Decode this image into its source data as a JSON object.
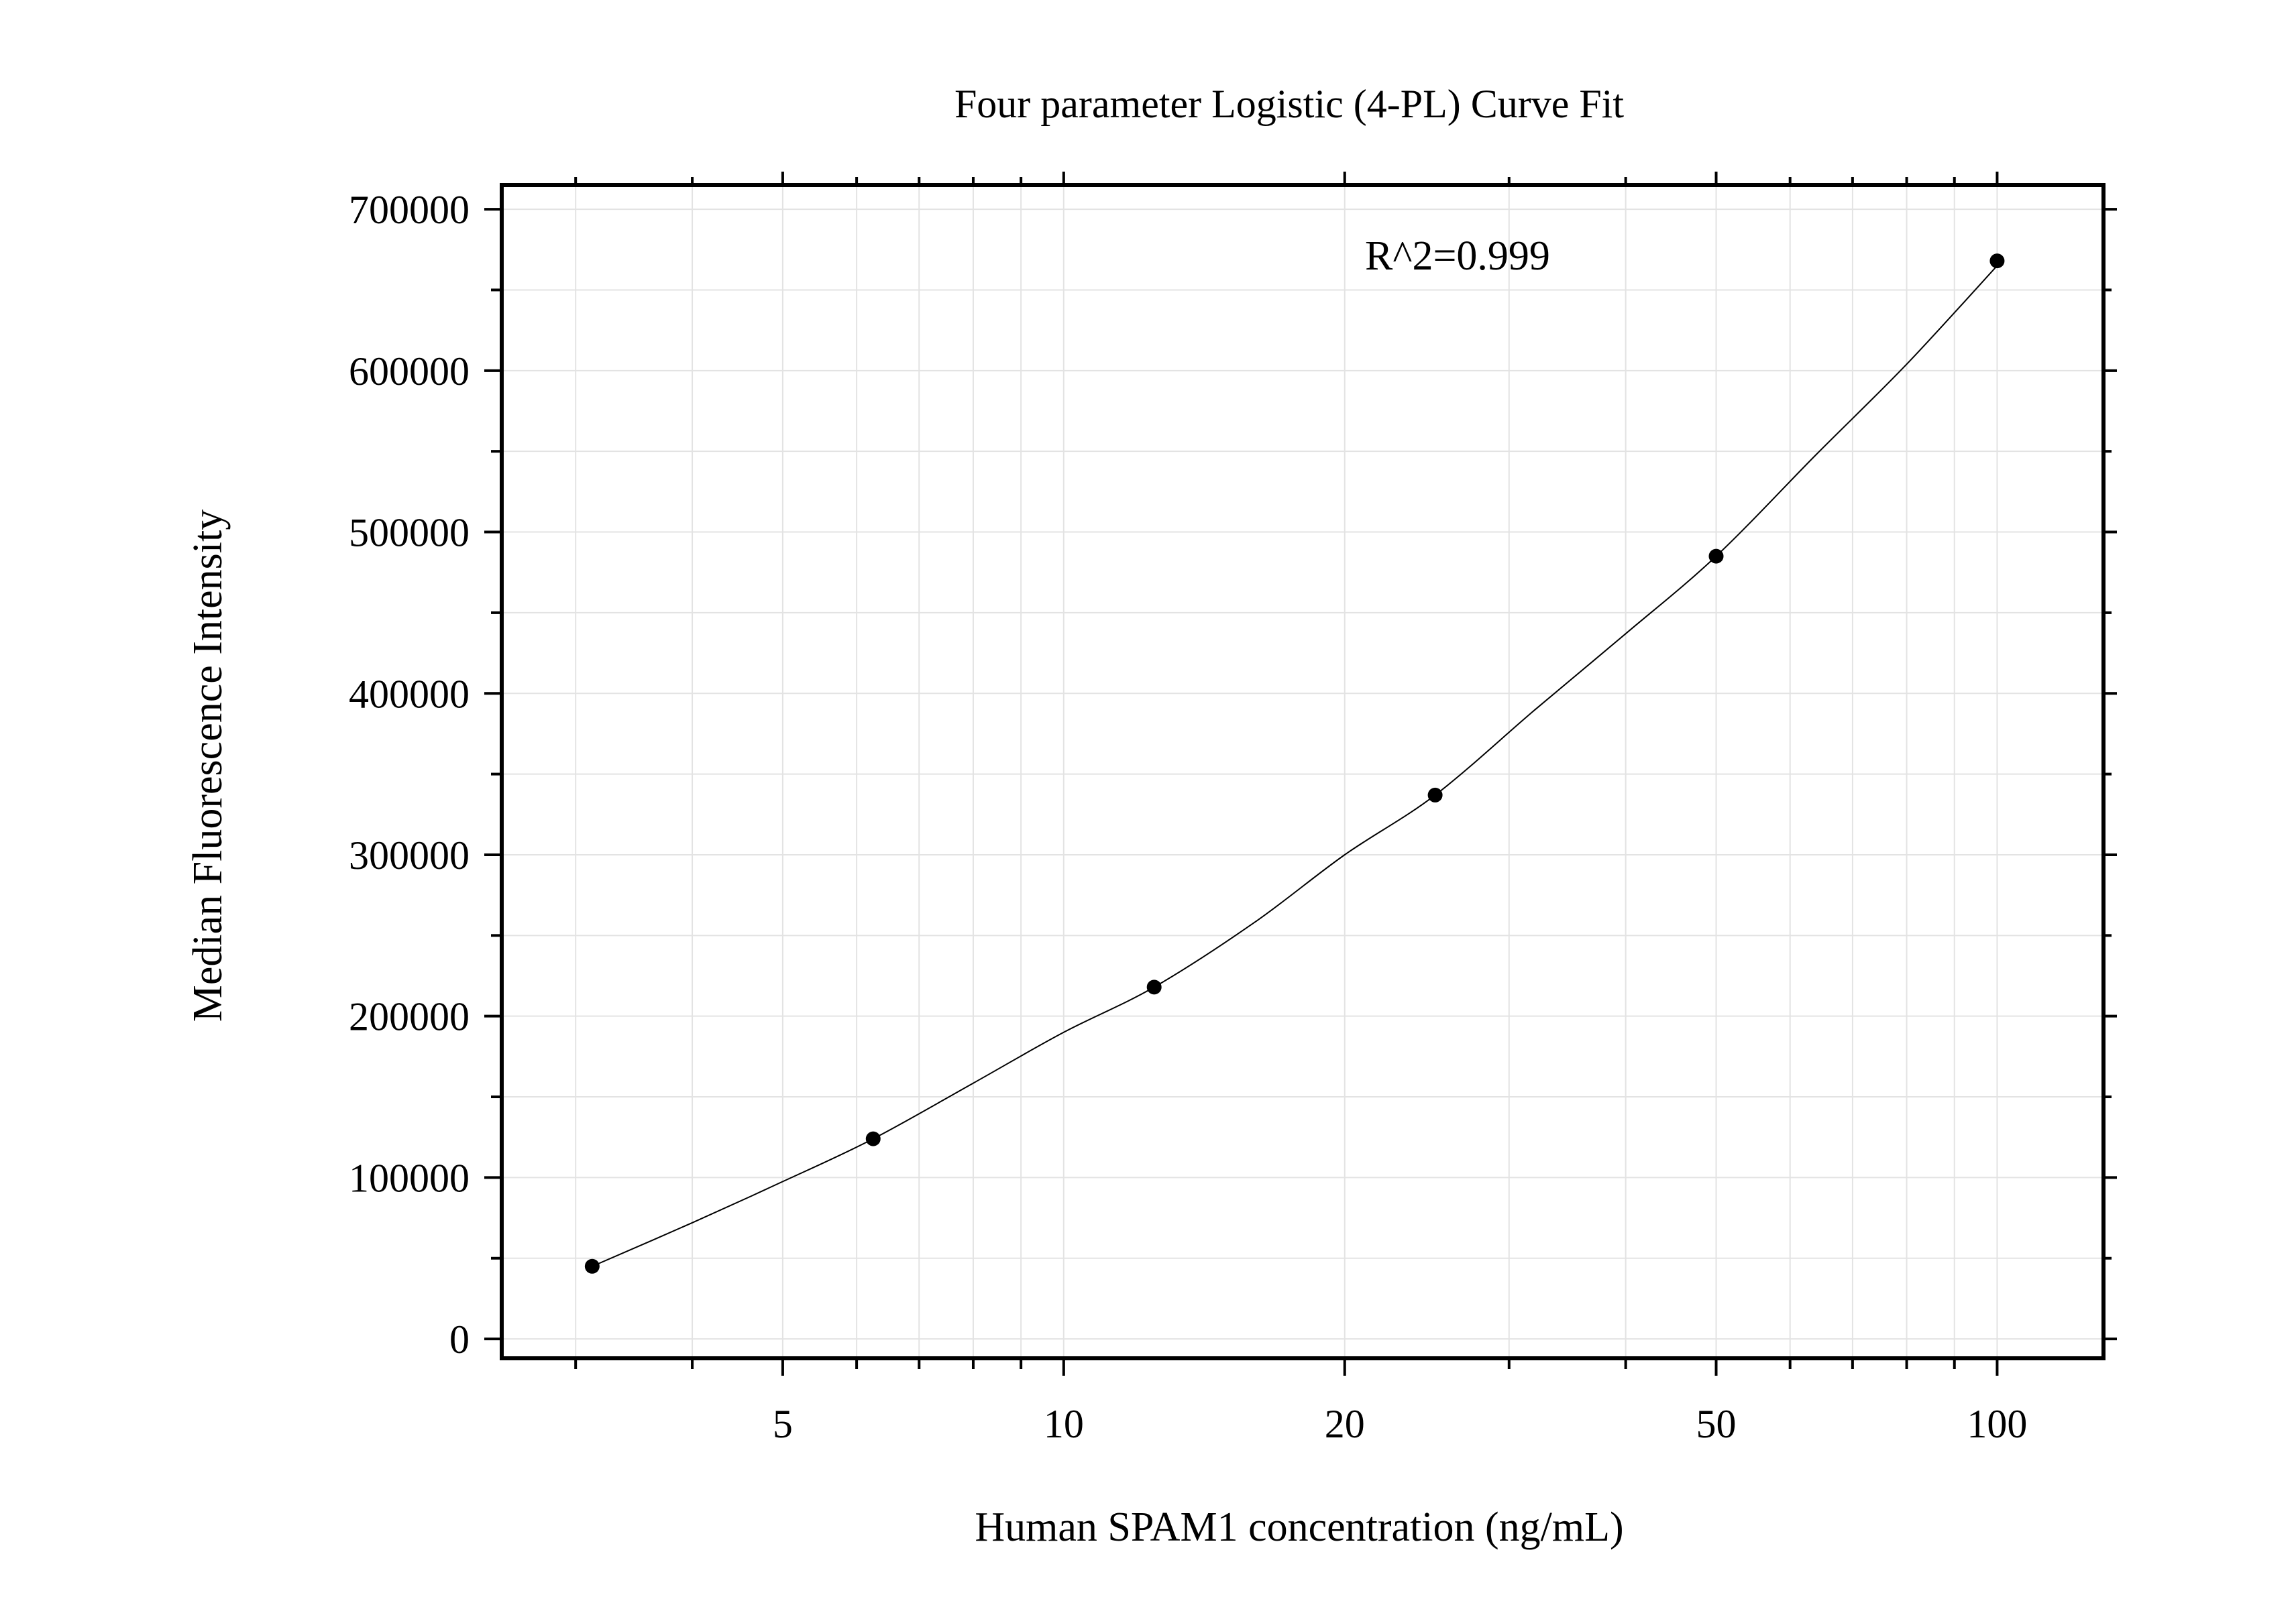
{
  "chart_data": {
    "type": "scatter",
    "title": "Four parameter Logistic (4-PL) Curve Fit",
    "xlabel": "Human SPAM1 concentration (ng/mL)",
    "ylabel": "Median Fluorescence Intensity",
    "x_scale": "log",
    "xlim": [
      2.5,
      130
    ],
    "ylim": [
      -12000,
      715000
    ],
    "x_major_ticks": [
      5,
      10,
      20,
      50,
      100
    ],
    "x_tick_labels": [
      "5",
      "10",
      "20",
      "50",
      "100"
    ],
    "x_minor_ticks": [
      3,
      4,
      6,
      7,
      8,
      9,
      30,
      40,
      60,
      70,
      80,
      90
    ],
    "y_major_ticks": [
      0,
      100000,
      200000,
      300000,
      400000,
      500000,
      600000,
      700000
    ],
    "y_tick_labels": [
      "0",
      "100000",
      "200000",
      "300000",
      "400000",
      "500000",
      "600000",
      "700000"
    ],
    "grid": true,
    "annotation": "R^2=0.999",
    "series": [
      {
        "kind": "points",
        "x": [
          3.125,
          6.25,
          12.5,
          25,
          50,
          100
        ],
        "y": [
          45000,
          124000,
          218000,
          337000,
          485000,
          668000
        ]
      },
      {
        "kind": "fit-curve",
        "x": [
          3.125,
          4,
          5,
          6.25,
          8,
          10,
          12.5,
          16,
          20,
          25,
          32,
          40,
          50,
          64,
          80,
          100
        ],
        "y": [
          45000,
          72000,
          97500,
          124000,
          158500,
          190000,
          218000,
          258000,
          300000,
          337000,
          390000,
          437000,
          485000,
          548000,
          604000,
          665000
        ]
      }
    ],
    "colors": {
      "axis": "#000000",
      "grid": "#e3e3e3",
      "points": "#000000",
      "curve": "#000000"
    }
  }
}
